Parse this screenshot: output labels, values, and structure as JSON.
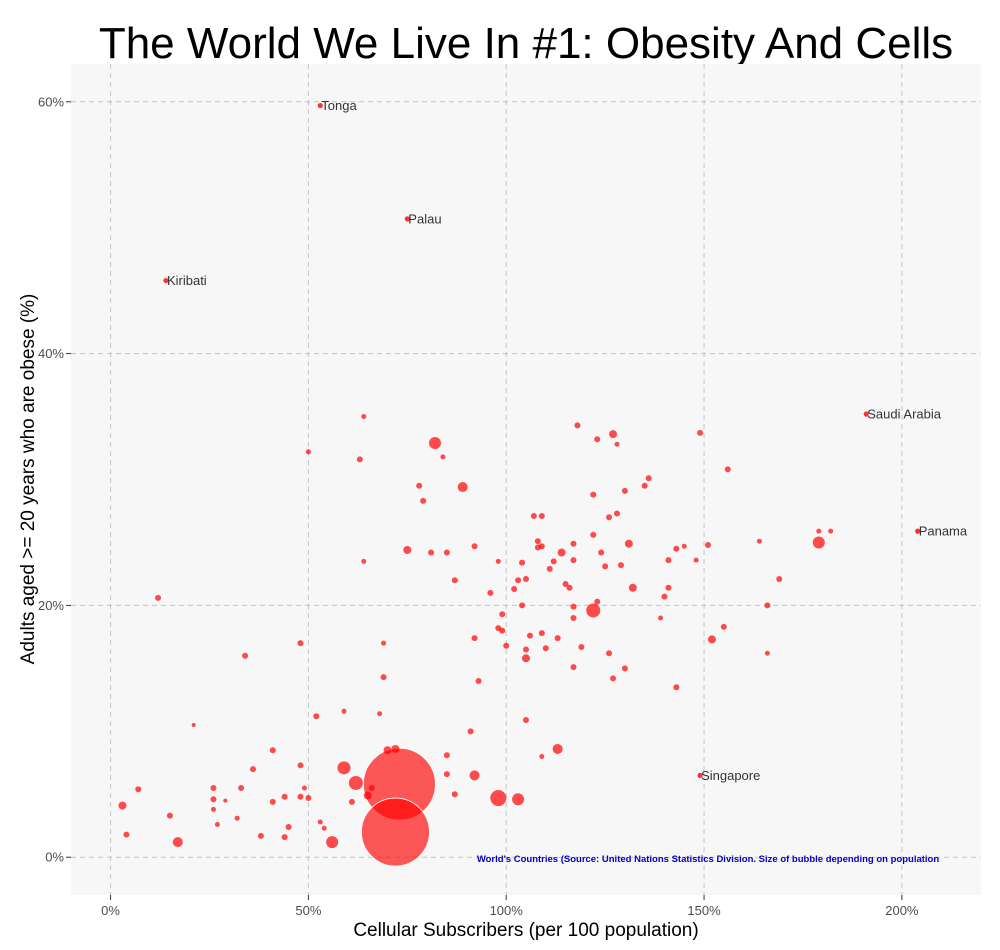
{
  "chart_data": {
    "type": "scatter",
    "title": "The World We Live In #1: Obesity And Cells",
    "xlabel": "Cellular Subscribers (per 100 population)",
    "ylabel": "Adults aged >= 20 years who are obese (%)",
    "note": "World's Countries (Source: United Nations Statistics Division. Size of bubble depending on population",
    "xlim": [
      -10,
      220
    ],
    "ylim": [
      -3,
      63
    ],
    "x_ticks": [
      0,
      50,
      100,
      150,
      200
    ],
    "x_tick_labels": [
      "0%",
      "50%",
      "100%",
      "150%",
      "200%"
    ],
    "y_ticks": [
      0,
      20,
      40,
      60
    ],
    "y_tick_labels": [
      "0%",
      "20%",
      "40%",
      "60%"
    ],
    "grid": true,
    "colors": {
      "point": "#ff0000",
      "panel": "#f7f7f7",
      "note": "#0000cc"
    },
    "labeled_points": [
      {
        "label": "Tonga",
        "x": 53,
        "y": 59.7
      },
      {
        "label": "Palau",
        "x": 75,
        "y": 50.7
      },
      {
        "label": "Kiribati",
        "x": 14,
        "y": 45.8
      },
      {
        "label": "Saudi Arabia",
        "x": 191,
        "y": 35.2
      },
      {
        "label": "Panama",
        "x": 204,
        "y": 25.9
      },
      {
        "label": "Singapore",
        "x": 149,
        "y": 6.5
      }
    ],
    "points": [
      {
        "x": 73,
        "y": 5.8,
        "size": 36
      },
      {
        "x": 72,
        "y": 2.0,
        "size": 34
      },
      {
        "x": 3,
        "y": 4.1,
        "size": 4
      },
      {
        "x": 4,
        "y": 1.8,
        "size": 3
      },
      {
        "x": 7,
        "y": 5.4,
        "size": 3
      },
      {
        "x": 15,
        "y": 3.3,
        "size": 3
      },
      {
        "x": 17,
        "y": 1.2,
        "size": 5
      },
      {
        "x": 12,
        "y": 20.6,
        "size": 3
      },
      {
        "x": 21,
        "y": 10.5,
        "size": 2
      },
      {
        "x": 26,
        "y": 5.5,
        "size": 3
      },
      {
        "x": 26,
        "y": 4.6,
        "size": 3
      },
      {
        "x": 26,
        "y": 3.8,
        "size": 2.5
      },
      {
        "x": 27,
        "y": 2.6,
        "size": 2.5
      },
      {
        "x": 29,
        "y": 4.5,
        "size": 2
      },
      {
        "x": 32,
        "y": 3.1,
        "size": 2.5
      },
      {
        "x": 33,
        "y": 5.5,
        "size": 3
      },
      {
        "x": 34,
        "y": 16.0,
        "size": 3
      },
      {
        "x": 36,
        "y": 7.0,
        "size": 3
      },
      {
        "x": 38,
        "y": 1.7,
        "size": 3
      },
      {
        "x": 41,
        "y": 8.5,
        "size": 3
      },
      {
        "x": 41,
        "y": 4.4,
        "size": 3
      },
      {
        "x": 44,
        "y": 4.8,
        "size": 3
      },
      {
        "x": 44,
        "y": 1.6,
        "size": 3
      },
      {
        "x": 45,
        "y": 2.4,
        "size": 3
      },
      {
        "x": 48,
        "y": 17.0,
        "size": 3
      },
      {
        "x": 48,
        "y": 7.3,
        "size": 3
      },
      {
        "x": 48,
        "y": 4.8,
        "size": 3
      },
      {
        "x": 49,
        "y": 5.5,
        "size": 2.5
      },
      {
        "x": 50,
        "y": 4.7,
        "size": 3
      },
      {
        "x": 50,
        "y": 32.2,
        "size": 2.5
      },
      {
        "x": 52,
        "y": 11.2,
        "size": 3
      },
      {
        "x": 53,
        "y": 2.8,
        "size": 2.5
      },
      {
        "x": 54,
        "y": 2.3,
        "size": 2.5
      },
      {
        "x": 56,
        "y": 1.2,
        "size": 6
      },
      {
        "x": 59,
        "y": 7.1,
        "size": 6.5
      },
      {
        "x": 59,
        "y": 11.6,
        "size": 2.5
      },
      {
        "x": 61,
        "y": 4.4,
        "size": 3
      },
      {
        "x": 62,
        "y": 5.9,
        "size": 7
      },
      {
        "x": 63,
        "y": 31.6,
        "size": 3
      },
      {
        "x": 64,
        "y": 35.0,
        "size": 2.5
      },
      {
        "x": 64,
        "y": 23.5,
        "size": 2.5
      },
      {
        "x": 65,
        "y": 4.9,
        "size": 4
      },
      {
        "x": 66,
        "y": 5.5,
        "size": 3
      },
      {
        "x": 68,
        "y": 11.4,
        "size": 2.5
      },
      {
        "x": 69,
        "y": 17.0,
        "size": 2.5
      },
      {
        "x": 69,
        "y": 14.3,
        "size": 3
      },
      {
        "x": 70,
        "y": 8.5,
        "size": 4
      },
      {
        "x": 72,
        "y": 8.6,
        "size": 4
      },
      {
        "x": 75,
        "y": 24.4,
        "size": 4
      },
      {
        "x": 78,
        "y": 29.5,
        "size": 3
      },
      {
        "x": 79,
        "y": 28.3,
        "size": 3
      },
      {
        "x": 81,
        "y": 24.2,
        "size": 3
      },
      {
        "x": 82,
        "y": 32.9,
        "size": 6
      },
      {
        "x": 84,
        "y": 31.8,
        "size": 2.5
      },
      {
        "x": 85,
        "y": 24.2,
        "size": 3
      },
      {
        "x": 85,
        "y": 8.1,
        "size": 3
      },
      {
        "x": 85,
        "y": 6.6,
        "size": 3
      },
      {
        "x": 87,
        "y": 22.0,
        "size": 3
      },
      {
        "x": 87,
        "y": 5.0,
        "size": 3
      },
      {
        "x": 89,
        "y": 29.4,
        "size": 5
      },
      {
        "x": 91,
        "y": 10.0,
        "size": 3
      },
      {
        "x": 92,
        "y": 24.7,
        "size": 3
      },
      {
        "x": 92,
        "y": 17.4,
        "size": 3
      },
      {
        "x": 92,
        "y": 6.5,
        "size": 5
      },
      {
        "x": 93,
        "y": 14.0,
        "size": 3
      },
      {
        "x": 96,
        "y": 21.0,
        "size": 3
      },
      {
        "x": 98,
        "y": 4.7,
        "size": 8
      },
      {
        "x": 98,
        "y": 23.5,
        "size": 2.5
      },
      {
        "x": 98,
        "y": 18.2,
        "size": 3
      },
      {
        "x": 99,
        "y": 18.0,
        "size": 3
      },
      {
        "x": 99,
        "y": 19.3,
        "size": 3
      },
      {
        "x": 100,
        "y": 16.8,
        "size": 3
      },
      {
        "x": 102,
        "y": 21.3,
        "size": 3
      },
      {
        "x": 103,
        "y": 22.0,
        "size": 3
      },
      {
        "x": 103,
        "y": 4.6,
        "size": 6
      },
      {
        "x": 104,
        "y": 23.4,
        "size": 3
      },
      {
        "x": 104,
        "y": 20.0,
        "size": 3
      },
      {
        "x": 105,
        "y": 22.1,
        "size": 3
      },
      {
        "x": 105,
        "y": 15.8,
        "size": 4
      },
      {
        "x": 105,
        "y": 10.9,
        "size": 3
      },
      {
        "x": 105,
        "y": 16.5,
        "size": 3
      },
      {
        "x": 106,
        "y": 17.6,
        "size": 3
      },
      {
        "x": 107,
        "y": 27.1,
        "size": 3
      },
      {
        "x": 108,
        "y": 25.1,
        "size": 3
      },
      {
        "x": 108,
        "y": 24.6,
        "size": 3
      },
      {
        "x": 109,
        "y": 27.1,
        "size": 3
      },
      {
        "x": 109,
        "y": 24.7,
        "size": 3
      },
      {
        "x": 109,
        "y": 17.8,
        "size": 3
      },
      {
        "x": 109,
        "y": 8.0,
        "size": 2.5
      },
      {
        "x": 110,
        "y": 16.6,
        "size": 3
      },
      {
        "x": 111,
        "y": 22.9,
        "size": 3
      },
      {
        "x": 112,
        "y": 23.5,
        "size": 3
      },
      {
        "x": 113,
        "y": 17.4,
        "size": 3
      },
      {
        "x": 113,
        "y": 8.6,
        "size": 5
      },
      {
        "x": 114,
        "y": 24.2,
        "size": 4
      },
      {
        "x": 115,
        "y": 21.7,
        "size": 3
      },
      {
        "x": 116,
        "y": 21.4,
        "size": 3
      },
      {
        "x": 117,
        "y": 24.9,
        "size": 3
      },
      {
        "x": 117,
        "y": 23.6,
        "size": 3
      },
      {
        "x": 117,
        "y": 19.9,
        "size": 3
      },
      {
        "x": 117,
        "y": 19.0,
        "size": 3
      },
      {
        "x": 117,
        "y": 15.1,
        "size": 3
      },
      {
        "x": 118,
        "y": 34.3,
        "size": 3
      },
      {
        "x": 119,
        "y": 16.7,
        "size": 3
      },
      {
        "x": 122,
        "y": 28.8,
        "size": 3
      },
      {
        "x": 122,
        "y": 25.6,
        "size": 3
      },
      {
        "x": 122,
        "y": 19.6,
        "size": 7
      },
      {
        "x": 123,
        "y": 33.2,
        "size": 3
      },
      {
        "x": 123,
        "y": 20.3,
        "size": 3
      },
      {
        "x": 124,
        "y": 24.2,
        "size": 3
      },
      {
        "x": 125,
        "y": 23.1,
        "size": 3
      },
      {
        "x": 126,
        "y": 27.0,
        "size": 3
      },
      {
        "x": 126,
        "y": 16.2,
        "size": 3
      },
      {
        "x": 127,
        "y": 33.6,
        "size": 4
      },
      {
        "x": 127,
        "y": 14.2,
        "size": 3
      },
      {
        "x": 128,
        "y": 32.8,
        "size": 2.5
      },
      {
        "x": 128,
        "y": 27.3,
        "size": 3
      },
      {
        "x": 129,
        "y": 23.2,
        "size": 3
      },
      {
        "x": 130,
        "y": 29.1,
        "size": 3
      },
      {
        "x": 130,
        "y": 15.0,
        "size": 3
      },
      {
        "x": 131,
        "y": 24.9,
        "size": 4
      },
      {
        "x": 132,
        "y": 21.4,
        "size": 4
      },
      {
        "x": 135,
        "y": 29.5,
        "size": 3
      },
      {
        "x": 136,
        "y": 30.1,
        "size": 3
      },
      {
        "x": 139,
        "y": 19.0,
        "size": 2.5
      },
      {
        "x": 140,
        "y": 20.7,
        "size": 3
      },
      {
        "x": 141,
        "y": 21.4,
        "size": 3
      },
      {
        "x": 141,
        "y": 23.6,
        "size": 3
      },
      {
        "x": 143,
        "y": 24.5,
        "size": 3
      },
      {
        "x": 143,
        "y": 13.5,
        "size": 3
      },
      {
        "x": 145,
        "y": 24.7,
        "size": 2.5
      },
      {
        "x": 148,
        "y": 23.6,
        "size": 2.5
      },
      {
        "x": 149,
        "y": 33.7,
        "size": 3
      },
      {
        "x": 151,
        "y": 24.8,
        "size": 3
      },
      {
        "x": 152,
        "y": 17.3,
        "size": 4
      },
      {
        "x": 155,
        "y": 18.3,
        "size": 3
      },
      {
        "x": 156,
        "y": 30.8,
        "size": 3
      },
      {
        "x": 164,
        "y": 25.1,
        "size": 2.5
      },
      {
        "x": 166,
        "y": 20.0,
        "size": 3
      },
      {
        "x": 166,
        "y": 16.2,
        "size": 2.5
      },
      {
        "x": 169,
        "y": 22.1,
        "size": 3
      },
      {
        "x": 179,
        "y": 25.0,
        "size": 6
      },
      {
        "x": 179,
        "y": 25.9,
        "size": 2.5
      },
      {
        "x": 182,
        "y": 25.9,
        "size": 2.5
      }
    ]
  }
}
